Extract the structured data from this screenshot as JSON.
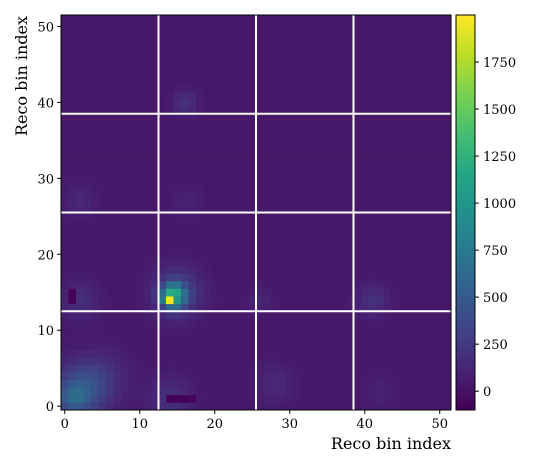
{
  "chart_data": {
    "type": "heatmap",
    "title": "",
    "xlabel": "Reco bin index",
    "ylabel": "Reco bin index",
    "xlim": [
      -0.5,
      51.5
    ],
    "ylim": [
      -0.5,
      51.5
    ],
    "x_ticks": [
      0,
      10,
      20,
      30,
      40,
      50
    ],
    "y_ticks": [
      0,
      10,
      20,
      30,
      40,
      50
    ],
    "x_tick_labels": [
      "0",
      "10",
      "20",
      "30",
      "40",
      "50"
    ],
    "y_tick_labels": [
      "0",
      "10",
      "20",
      "30",
      "40",
      "50"
    ],
    "n_bins": 52,
    "block_boundaries": [
      12.5,
      25.5,
      38.5
    ],
    "block_line_color": "#ffffff",
    "colormap": "viridis",
    "colorbar": {
      "vmin": -100,
      "vmax": 2000,
      "ticks": [
        0,
        250,
        500,
        750,
        1000,
        1250,
        1500,
        1750
      ],
      "tick_labels": [
        "0",
        "250",
        "500",
        "750",
        "1000",
        "1250",
        "1500",
        "1750"
      ]
    },
    "background_value": 40,
    "blobs": [
      {
        "x": 2,
        "y": 2,
        "amplitude": 420,
        "spread": 2.4
      },
      {
        "x": 1,
        "y": 1,
        "amplitude": 250,
        "spread": 1.2
      },
      {
        "x": 5,
        "y": 4,
        "amplitude": 140,
        "spread": 2.5
      },
      {
        "x": 14.5,
        "y": 14.5,
        "amplitude": 1300,
        "spread": 1.0
      },
      {
        "x": 15,
        "y": 15,
        "amplitude": 320,
        "spread": 2.2
      },
      {
        "x": 14,
        "y": 1,
        "amplitude": 160,
        "spread": 2.0
      },
      {
        "x": 16,
        "y": 40,
        "amplitude": 160,
        "spread": 1.2
      },
      {
        "x": 2,
        "y": 27,
        "amplitude": 110,
        "spread": 1.5
      },
      {
        "x": 2,
        "y": 14,
        "amplitude": 140,
        "spread": 1.8
      },
      {
        "x": 41,
        "y": 14,
        "amplitude": 170,
        "spread": 1.5
      },
      {
        "x": 28,
        "y": 3,
        "amplitude": 110,
        "spread": 1.8
      },
      {
        "x": 26,
        "y": 14,
        "amplitude": 90,
        "spread": 1.2
      },
      {
        "x": 16,
        "y": 27,
        "amplitude": 70,
        "spread": 1.5
      },
      {
        "x": 42,
        "y": 2,
        "amplitude": 70,
        "spread": 1.5
      }
    ],
    "cells": [
      {
        "x": 14,
        "y": 14,
        "value": 1980
      },
      {
        "x": 14,
        "y": 15,
        "value": 1200
      },
      {
        "x": 15,
        "y": 15,
        "value": 1150
      },
      {
        "x": 15,
        "y": 14,
        "value": 1000
      },
      {
        "x": 13,
        "y": 14,
        "value": 700
      },
      {
        "x": 16,
        "y": 15,
        "value": 650
      },
      {
        "x": 16,
        "y": 14,
        "value": 600
      },
      {
        "x": 1,
        "y": 14,
        "value": -80
      },
      {
        "x": 1,
        "y": 15,
        "value": -80
      },
      {
        "x": 14,
        "y": 1,
        "value": -90
      },
      {
        "x": 15,
        "y": 1,
        "value": -90
      },
      {
        "x": 16,
        "y": 1,
        "value": -90
      },
      {
        "x": 17,
        "y": 1,
        "value": -60
      }
    ]
  }
}
